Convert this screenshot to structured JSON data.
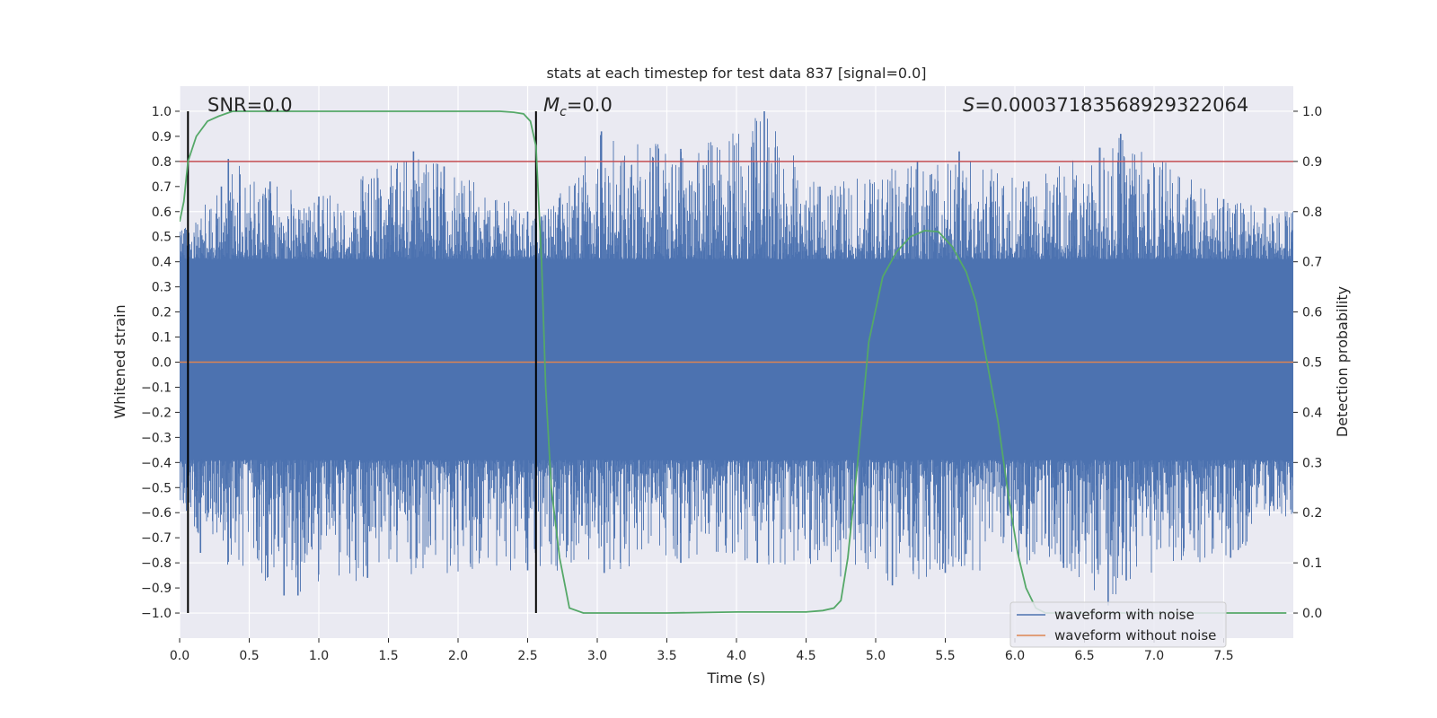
{
  "chart_data": {
    "type": "line",
    "title": "stats at each timestep for test data 837 [signal=0.0]",
    "xlabel": "Time (s)",
    "ylabel": "Whitened strain",
    "y2label": "Detection probability",
    "xlim": [
      0.0,
      8.0
    ],
    "ylim": [
      -1.1,
      1.1
    ],
    "y2lim": [
      -0.05,
      1.05
    ],
    "x_ticks": [
      0.0,
      0.5,
      1.0,
      1.5,
      2.0,
      2.5,
      3.0,
      3.5,
      4.0,
      4.5,
      5.0,
      5.5,
      6.0,
      6.5,
      7.0,
      7.5
    ],
    "x_tick_labels": [
      "0.0",
      "0.5",
      "1.0",
      "1.5",
      "2.0",
      "2.5",
      "3.0",
      "3.5",
      "4.0",
      "4.5",
      "5.0",
      "5.5",
      "6.0",
      "6.5",
      "7.0",
      "7.5"
    ],
    "y_ticks": [
      -1.0,
      -0.9,
      -0.8,
      -0.7,
      -0.6,
      -0.5,
      -0.4,
      -0.3,
      -0.2,
      -0.1,
      0.0,
      0.1,
      0.2,
      0.3,
      0.4,
      0.5,
      0.6,
      0.7,
      0.8,
      0.9,
      1.0
    ],
    "y_tick_labels": [
      "−1.0",
      "−0.9",
      "−0.8",
      "−0.7",
      "−0.6",
      "−0.5",
      "−0.4",
      "−0.3",
      "−0.2",
      "−0.1",
      "0.0",
      "0.1",
      "0.2",
      "0.3",
      "0.4",
      "0.5",
      "0.6",
      "0.7",
      "0.8",
      "0.9",
      "1.0"
    ],
    "y2_ticks": [
      0.0,
      0.1,
      0.2,
      0.3,
      0.4,
      0.5,
      0.6,
      0.7,
      0.8,
      0.9,
      1.0
    ],
    "y2_tick_labels": [
      "0.0",
      "0.1",
      "0.2",
      "0.3",
      "0.4",
      "0.5",
      "0.6",
      "0.7",
      "0.8",
      "0.9",
      "1.0"
    ],
    "grid": true,
    "legend_position": "bottom-right",
    "annotations": {
      "snr": "SNR=0.0",
      "mc_symbol": "M",
      "mc_subscript": "c",
      "mc_value": "=0.0",
      "s_symbol": "S",
      "s_value": "=0.00037183568929322064"
    },
    "threshold": {
      "value": 0.9,
      "axis": "right",
      "color": "#c44e52"
    },
    "vlines": [
      0.06,
      2.56
    ],
    "series": [
      {
        "name": "waveform with noise",
        "axis": "left",
        "color": "#4c72b0",
        "kind": "dense noise",
        "core_band": [
          -0.39,
          0.41
        ],
        "envelope_high": [
          [
            0.0,
            0.52
          ],
          [
            0.3,
            0.7
          ],
          [
            0.35,
            0.81
          ],
          [
            0.65,
            0.72
          ],
          [
            1.0,
            0.66
          ],
          [
            1.68,
            0.84
          ],
          [
            1.9,
            0.78
          ],
          [
            2.5,
            0.6
          ],
          [
            2.6,
            0.58
          ],
          [
            3.03,
            0.92
          ],
          [
            3.6,
            0.85
          ],
          [
            4.2,
            1.0
          ],
          [
            4.6,
            0.7
          ],
          [
            5.3,
            0.8
          ],
          [
            5.6,
            0.84
          ],
          [
            6.1,
            0.72
          ],
          [
            6.76,
            0.91
          ],
          [
            7.5,
            0.65
          ],
          [
            8.0,
            0.6
          ]
        ],
        "envelope_low": [
          [
            0.0,
            -0.55
          ],
          [
            0.15,
            -0.76
          ],
          [
            0.75,
            -0.93
          ],
          [
            0.85,
            -0.93
          ],
          [
            1.35,
            -0.86
          ],
          [
            2.5,
            -0.83
          ],
          [
            3.05,
            -0.84
          ],
          [
            3.6,
            -0.8
          ],
          [
            4.15,
            -0.8
          ],
          [
            5.12,
            -0.89
          ],
          [
            5.5,
            -0.84
          ],
          [
            6.35,
            -0.82
          ],
          [
            6.67,
            -0.97
          ],
          [
            6.8,
            -0.87
          ],
          [
            7.55,
            -0.78
          ],
          [
            8.0,
            -0.6
          ]
        ]
      },
      {
        "name": "waveform without noise",
        "axis": "left",
        "color": "#dd8452",
        "x": [
          0.0,
          8.0
        ],
        "y": [
          0.0,
          0.0
        ]
      },
      {
        "axis": "right",
        "color": "#55a868",
        "x": [
          0.0,
          0.03,
          0.06,
          0.12,
          0.2,
          0.28,
          0.38,
          0.5,
          1.0,
          1.5,
          2.0,
          2.3,
          2.4,
          2.47,
          2.52,
          2.56,
          2.6,
          2.63,
          2.67,
          2.73,
          2.8,
          2.9,
          3.5,
          4.0,
          4.5,
          4.62,
          4.7,
          4.75,
          4.8,
          4.87,
          4.95,
          5.05,
          5.15,
          5.25,
          5.35,
          5.45,
          5.55,
          5.65,
          5.72,
          5.8,
          5.88,
          5.95,
          6.02,
          6.08,
          6.15,
          6.22,
          6.5,
          7.0,
          7.95
        ],
        "y": [
          0.78,
          0.82,
          0.9,
          0.95,
          0.98,
          0.99,
          1.0,
          1.0,
          1.0,
          1.0,
          1.0,
          1.0,
          0.998,
          0.995,
          0.98,
          0.93,
          0.7,
          0.45,
          0.25,
          0.11,
          0.01,
          0.0,
          0.0,
          0.002,
          0.002,
          0.005,
          0.01,
          0.025,
          0.11,
          0.3,
          0.54,
          0.67,
          0.72,
          0.75,
          0.762,
          0.76,
          0.73,
          0.68,
          0.62,
          0.5,
          0.38,
          0.24,
          0.12,
          0.05,
          0.01,
          0.0,
          0.0,
          0.0,
          0.0
        ]
      }
    ]
  }
}
